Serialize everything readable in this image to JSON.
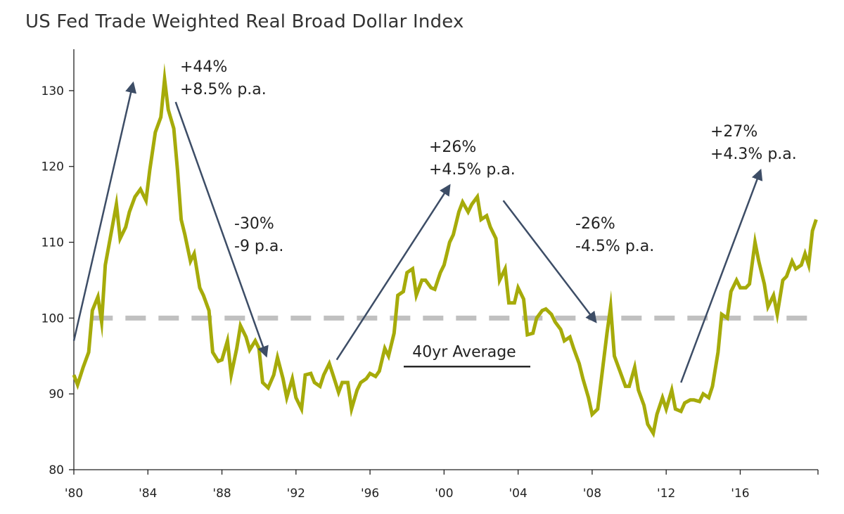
{
  "chart_data": {
    "type": "line",
    "title": "US Fed Trade Weighted Real Broad Dollar Index",
    "xlabel": "",
    "ylabel": "",
    "xlim": [
      1980,
      2020.2
    ],
    "ylim": [
      80,
      135
    ],
    "x_ticks": [
      {
        "value": 1980,
        "label": "'80"
      },
      {
        "value": 1984,
        "label": "'84"
      },
      {
        "value": 1988,
        "label": "'88"
      },
      {
        "value": 1992,
        "label": "'92"
      },
      {
        "value": 1996,
        "label": "'96"
      },
      {
        "value": 2000,
        "label": "'00"
      },
      {
        "value": 2004,
        "label": "'04"
      },
      {
        "value": 2008,
        "label": "'08"
      },
      {
        "value": 2012,
        "label": "'12"
      },
      {
        "value": 2016,
        "label": "'16"
      }
    ],
    "y_ticks": [
      80,
      90,
      100,
      110,
      120,
      130
    ],
    "series": [
      {
        "name": "US Fed Trade Weighted Real Broad Dollar Index",
        "color": "#a6ab0a",
        "points": [
          [
            1980.0,
            92.5
          ],
          [
            1980.2,
            91.2
          ],
          [
            1980.5,
            93.5
          ],
          [
            1980.8,
            95.5
          ],
          [
            1981.0,
            101.0
          ],
          [
            1981.3,
            102.8
          ],
          [
            1981.5,
            99.5
          ],
          [
            1981.7,
            107.0
          ],
          [
            1982.0,
            111.0
          ],
          [
            1982.3,
            115.0
          ],
          [
            1982.5,
            110.5
          ],
          [
            1982.8,
            112.0
          ],
          [
            1983.0,
            114.0
          ],
          [
            1983.3,
            116.0
          ],
          [
            1983.6,
            117.0
          ],
          [
            1983.9,
            115.5
          ],
          [
            1984.1,
            119.5
          ],
          [
            1984.4,
            124.5
          ],
          [
            1984.7,
            126.5
          ],
          [
            1984.9,
            131.5
          ],
          [
            1985.1,
            127.5
          ],
          [
            1985.4,
            125.0
          ],
          [
            1985.6,
            119.5
          ],
          [
            1985.8,
            113.0
          ],
          [
            1986.0,
            111.0
          ],
          [
            1986.3,
            107.5
          ],
          [
            1986.5,
            108.5
          ],
          [
            1986.8,
            104.0
          ],
          [
            1987.0,
            103.0
          ],
          [
            1987.3,
            101.0
          ],
          [
            1987.5,
            95.5
          ],
          [
            1987.8,
            94.3
          ],
          [
            1988.0,
            94.5
          ],
          [
            1988.3,
            97.0
          ],
          [
            1988.5,
            92.5
          ],
          [
            1988.8,
            96.0
          ],
          [
            1989.0,
            99.0
          ],
          [
            1989.3,
            97.5
          ],
          [
            1989.5,
            95.8
          ],
          [
            1989.8,
            97.0
          ],
          [
            1990.0,
            96.0
          ],
          [
            1990.2,
            91.5
          ],
          [
            1990.5,
            90.8
          ],
          [
            1990.8,
            92.5
          ],
          [
            1991.0,
            94.8
          ],
          [
            1991.3,
            92.0
          ],
          [
            1991.5,
            89.5
          ],
          [
            1991.8,
            92.0
          ],
          [
            1992.0,
            89.5
          ],
          [
            1992.3,
            88.0
          ],
          [
            1992.5,
            92.5
          ],
          [
            1992.8,
            92.7
          ],
          [
            1993.0,
            91.5
          ],
          [
            1993.3,
            91.0
          ],
          [
            1993.5,
            92.5
          ],
          [
            1993.8,
            94.0
          ],
          [
            1994.0,
            92.5
          ],
          [
            1994.3,
            90.2
          ],
          [
            1994.5,
            91.5
          ],
          [
            1994.8,
            91.5
          ],
          [
            1995.0,
            88.0
          ],
          [
            1995.3,
            90.5
          ],
          [
            1995.5,
            91.5
          ],
          [
            1995.8,
            92.0
          ],
          [
            1996.0,
            92.7
          ],
          [
            1996.3,
            92.3
          ],
          [
            1996.5,
            93.0
          ],
          [
            1996.8,
            96.0
          ],
          [
            1997.0,
            95.0
          ],
          [
            1997.3,
            98.0
          ],
          [
            1997.5,
            103.0
          ],
          [
            1997.8,
            103.5
          ],
          [
            1998.0,
            106.0
          ],
          [
            1998.3,
            106.5
          ],
          [
            1998.5,
            103.0
          ],
          [
            1998.8,
            105.0
          ],
          [
            1999.0,
            105.0
          ],
          [
            1999.3,
            104.0
          ],
          [
            1999.5,
            103.8
          ],
          [
            1999.8,
            106.0
          ],
          [
            2000.0,
            107.0
          ],
          [
            2000.3,
            110.0
          ],
          [
            2000.5,
            111.0
          ],
          [
            2000.8,
            114.0
          ],
          [
            2001.0,
            115.3
          ],
          [
            2001.3,
            114.0
          ],
          [
            2001.5,
            115.0
          ],
          [
            2001.8,
            116.0
          ],
          [
            2002.0,
            113.0
          ],
          [
            2002.3,
            113.5
          ],
          [
            2002.5,
            112.0
          ],
          [
            2002.8,
            110.5
          ],
          [
            2003.0,
            105.0
          ],
          [
            2003.3,
            106.5
          ],
          [
            2003.5,
            102.0
          ],
          [
            2003.8,
            102.0
          ],
          [
            2004.0,
            104.0
          ],
          [
            2004.3,
            102.5
          ],
          [
            2004.5,
            97.8
          ],
          [
            2004.8,
            98.0
          ],
          [
            2005.0,
            100.0
          ],
          [
            2005.3,
            101.0
          ],
          [
            2005.5,
            101.2
          ],
          [
            2005.8,
            100.5
          ],
          [
            2006.0,
            99.5
          ],
          [
            2006.3,
            98.5
          ],
          [
            2006.5,
            97.0
          ],
          [
            2006.8,
            97.5
          ],
          [
            2007.0,
            96.0
          ],
          [
            2007.3,
            94.0
          ],
          [
            2007.5,
            92.0
          ],
          [
            2007.8,
            89.5
          ],
          [
            2008.0,
            87.3
          ],
          [
            2008.3,
            88.0
          ],
          [
            2008.5,
            92.0
          ],
          [
            2008.8,
            98.0
          ],
          [
            2009.0,
            101.5
          ],
          [
            2009.2,
            95.0
          ],
          [
            2009.5,
            93.0
          ],
          [
            2009.8,
            91.0
          ],
          [
            2010.0,
            91.0
          ],
          [
            2010.3,
            93.5
          ],
          [
            2010.5,
            90.5
          ],
          [
            2010.8,
            88.5
          ],
          [
            2011.0,
            86.0
          ],
          [
            2011.3,
            84.8
          ],
          [
            2011.5,
            87.3
          ],
          [
            2011.8,
            89.5
          ],
          [
            2012.0,
            88.0
          ],
          [
            2012.3,
            90.5
          ],
          [
            2012.5,
            88.0
          ],
          [
            2012.8,
            87.7
          ],
          [
            2013.0,
            88.8
          ],
          [
            2013.3,
            89.2
          ],
          [
            2013.5,
            89.2
          ],
          [
            2013.8,
            89.0
          ],
          [
            2014.0,
            90.0
          ],
          [
            2014.3,
            89.5
          ],
          [
            2014.5,
            91.0
          ],
          [
            2014.8,
            95.5
          ],
          [
            2015.0,
            100.5
          ],
          [
            2015.3,
            100.0
          ],
          [
            2015.5,
            103.5
          ],
          [
            2015.8,
            105.0
          ],
          [
            2016.0,
            104.0
          ],
          [
            2016.3,
            104.0
          ],
          [
            2016.5,
            104.5
          ],
          [
            2016.8,
            110.0
          ],
          [
            2017.0,
            107.5
          ],
          [
            2017.3,
            104.5
          ],
          [
            2017.5,
            101.5
          ],
          [
            2017.8,
            103.0
          ],
          [
            2018.0,
            100.5
          ],
          [
            2018.3,
            105.0
          ],
          [
            2018.5,
            105.5
          ],
          [
            2018.8,
            107.5
          ],
          [
            2019.0,
            106.5
          ],
          [
            2019.3,
            107.0
          ],
          [
            2019.5,
            108.5
          ],
          [
            2019.7,
            107.0
          ],
          [
            2019.9,
            111.5
          ],
          [
            2020.1,
            113.0
          ]
        ]
      }
    ],
    "reference_line": {
      "label": "40yr Average",
      "value": 100,
      "color": "#c0c0c0"
    },
    "annotations": [
      {
        "lines": [
          "+44%",
          "+8.5% p.a."
        ],
        "arrow_from": [
          1980.0,
          97
        ],
        "arrow_to": [
          1983.2,
          131
        ]
      },
      {
        "lines": [
          "-30%",
          "-9 p.a."
        ],
        "arrow_from": [
          1985.5,
          128.5
        ],
        "arrow_to": [
          1990.4,
          95
        ]
      },
      {
        "lines": [
          "+26%",
          "+4.5% p.a."
        ],
        "arrow_from": [
          1994.2,
          94.5
        ],
        "arrow_to": [
          2000.3,
          117.5
        ]
      },
      {
        "lines": [
          "-26%",
          "-4.5% p.a."
        ],
        "arrow_from": [
          2003.2,
          115.5
        ],
        "arrow_to": [
          2008.2,
          99.5
        ]
      },
      {
        "lines": [
          "+27%",
          "+4.3% p.a."
        ],
        "arrow_from": [
          2012.8,
          91.5
        ],
        "arrow_to": [
          2017.1,
          119.5
        ]
      }
    ],
    "colors": {
      "line": "#a6ab0a",
      "arrow": "#3d4d66",
      "axis": "#222222",
      "average": "#c0c0c0"
    }
  }
}
